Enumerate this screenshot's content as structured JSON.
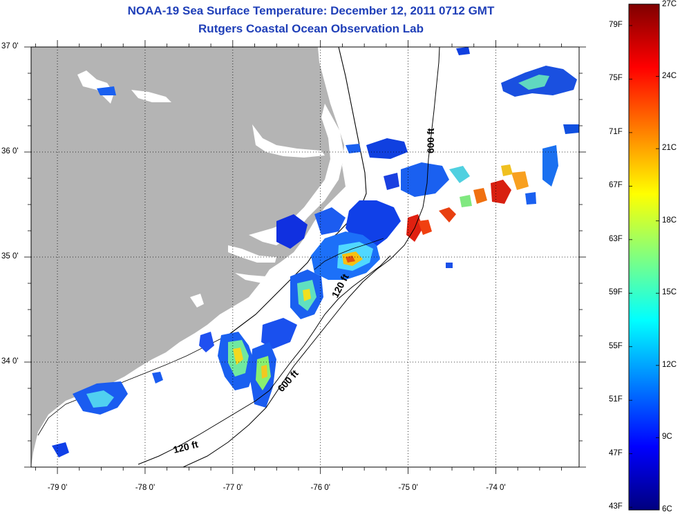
{
  "header": {
    "title": "NOAA-19 Sea Surface Temperature:  December 12, 2011 0712 GMT",
    "subtitle": "Rutgers Coastal Ocean Observation Lab"
  },
  "map": {
    "lat_labels": [
      "37 0'",
      "36 0'",
      "35 0'",
      "34 0'"
    ],
    "lon_labels": [
      "-79 0'",
      "-78 0'",
      "-77 0'",
      "-76 0'",
      "-75 0'",
      "-74 0'"
    ],
    "lat_values": [
      37,
      36,
      35,
      34
    ],
    "lon_values": [
      -79,
      -78,
      -77,
      -76,
      -75,
      -74
    ],
    "lat_range": [
      33.0,
      37.0
    ],
    "lon_range": [
      -79.3,
      -73.05
    ],
    "grid": "dotted",
    "land_color": "#b4b4b4",
    "contour_labels": {
      "shelf_120": "120 ft",
      "slope_600": "600 ft",
      "inner_120": "120 ft",
      "north_600": "600 ft"
    }
  },
  "colorbar": {
    "fahrenheit_labels": [
      "79F",
      "75F",
      "71F",
      "67F",
      "63F",
      "59F",
      "55F",
      "51F",
      "47F",
      "43F"
    ],
    "celsius_labels": [
      "27C",
      "24C",
      "21C",
      "18C",
      "15C",
      "12C",
      "9C",
      "6C"
    ],
    "min_c": 6,
    "max_c": 27,
    "colormap": "jet"
  }
}
